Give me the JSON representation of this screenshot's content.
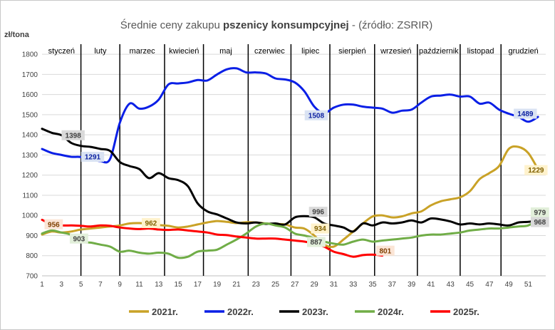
{
  "chart_data": {
    "type": "line",
    "title": {
      "prefix": "Średnie ceny zakupu ",
      "bold": "pszenicy konsumpcyjnej",
      "suffix": " - (źródło: ZSRIR)"
    },
    "ylabel": "zł/tona",
    "xlabel": "",
    "ylim": [
      700,
      1850
    ],
    "yticks": [
      700,
      800,
      900,
      1000,
      1100,
      1200,
      1300,
      1400,
      1500,
      1600,
      1700,
      1800
    ],
    "xlim": [
      1,
      52.8
    ],
    "xticks": [
      1,
      3,
      5,
      7,
      9,
      11,
      13,
      15,
      17,
      19,
      21,
      23,
      25,
      27,
      29,
      31,
      33,
      35,
      37,
      39,
      41,
      43,
      45,
      47,
      49,
      51
    ],
    "grid": "horizontal",
    "legend": "bottom",
    "months": [
      {
        "label": "styczeń",
        "start": 1,
        "end": 5
      },
      {
        "label": "luty",
        "start": 5,
        "end": 9
      },
      {
        "label": "marzec",
        "start": 9,
        "end": 13.6
      },
      {
        "label": "kwiecień",
        "start": 13.6,
        "end": 17.6
      },
      {
        "label": "maj",
        "start": 17.6,
        "end": 22.2
      },
      {
        "label": "czerwiec",
        "start": 22.2,
        "end": 26.6
      },
      {
        "label": "lipiec",
        "start": 26.6,
        "end": 30.6
      },
      {
        "label": "sierpień",
        "start": 30.6,
        "end": 35.2
      },
      {
        "label": "wrzesień",
        "start": 35.2,
        "end": 39.6
      },
      {
        "label": "październik",
        "start": 39.6,
        "end": 44
      },
      {
        "label": "listopad",
        "start": 44,
        "end": 48.2
      },
      {
        "label": "grudzień",
        "start": 48.2,
        "end": 52.8
      }
    ],
    "series": [
      {
        "name": "2021r.",
        "color": "#c9a227",
        "x": [
          1,
          2,
          3,
          4,
          5,
          6,
          7,
          8,
          9,
          10,
          11,
          12,
          13,
          14,
          15,
          16,
          17,
          18,
          19,
          20,
          21,
          22,
          23,
          24,
          25,
          26,
          27,
          28,
          29,
          30,
          31,
          32,
          33,
          34,
          35,
          36,
          37,
          38,
          39,
          40,
          41,
          42,
          43,
          44,
          45,
          46,
          47,
          48,
          49,
          50,
          51,
          52
        ],
        "values": [
          905,
          920,
          915,
          920,
          930,
          935,
          940,
          945,
          950,
          960,
          962,
          958,
          952,
          948,
          940,
          945,
          955,
          965,
          972,
          968,
          962,
          966,
          965,
          960,
          958,
          955,
          940,
          934,
          900,
          855,
          845,
          880,
          920,
          960,
          995,
          1000,
          990,
          995,
          1010,
          1020,
          1050,
          1070,
          1080,
          1090,
          1120,
          1180,
          1210,
          1245,
          1330,
          1340,
          1310,
          1229
        ]
      },
      {
        "name": "2022r.",
        "color": "#0a1fe6",
        "x": [
          1,
          2,
          3,
          4,
          5,
          6,
          7,
          8,
          9,
          10,
          11,
          12,
          13,
          14,
          15,
          16,
          17,
          18,
          19,
          20,
          21,
          22,
          23,
          24,
          25,
          26,
          27,
          28,
          29,
          30,
          31,
          32,
          33,
          34,
          35,
          36,
          37,
          38,
          39,
          40,
          41,
          42,
          43,
          44,
          45,
          46,
          47,
          48,
          49,
          50,
          51,
          52
        ],
        "values": [
          1330,
          1310,
          1300,
          1291,
          1290,
          1280,
          1270,
          1280,
          1460,
          1555,
          1530,
          1540,
          1575,
          1650,
          1655,
          1660,
          1672,
          1670,
          1700,
          1725,
          1730,
          1710,
          1710,
          1705,
          1680,
          1675,
          1660,
          1615,
          1540,
          1508,
          1535,
          1550,
          1550,
          1540,
          1535,
          1530,
          1510,
          1520,
          1525,
          1560,
          1590,
          1595,
          1600,
          1590,
          1590,
          1555,
          1560,
          1525,
          1505,
          1489,
          1465,
          1489
        ]
      },
      {
        "name": "2023r.",
        "color": "#000000",
        "x": [
          1,
          2,
          3,
          4,
          5,
          6,
          7,
          8,
          9,
          10,
          11,
          12,
          13,
          14,
          15,
          16,
          17,
          18,
          19,
          20,
          21,
          22,
          23,
          24,
          25,
          26,
          27,
          28,
          29,
          30,
          31,
          32,
          33,
          34,
          35,
          36,
          37,
          38,
          39,
          40,
          41,
          42,
          43,
          44,
          45,
          46,
          47,
          48,
          49,
          50,
          51,
          52
        ],
        "values": [
          1430,
          1410,
          1398,
          1360,
          1345,
          1340,
          1330,
          1320,
          1265,
          1245,
          1230,
          1185,
          1210,
          1185,
          1175,
          1145,
          1060,
          1020,
          1005,
          985,
          965,
          960,
          965,
          958,
          960,
          955,
          990,
          996,
          990,
          960,
          950,
          940,
          920,
          960,
          950,
          965,
          960,
          965,
          975,
          965,
          985,
          980,
          970,
          955,
          960,
          955,
          960,
          955,
          950,
          965,
          968,
          975
        ]
      },
      {
        "name": "2024r.",
        "color": "#70ad47",
        "x": [
          1,
          2,
          3,
          4,
          5,
          6,
          7,
          8,
          9,
          10,
          11,
          12,
          13,
          14,
          15,
          16,
          17,
          18,
          19,
          20,
          21,
          22,
          23,
          24,
          25,
          26,
          27,
          28,
          29,
          30,
          31,
          32,
          33,
          34,
          35,
          36,
          37,
          38,
          39,
          40,
          41,
          42,
          43,
          44,
          45,
          46,
          47,
          48,
          49,
          50,
          51,
          52
        ],
        "values": [
          910,
          925,
          915,
          903,
          870,
          865,
          855,
          845,
          820,
          825,
          815,
          810,
          815,
          810,
          790,
          795,
          820,
          825,
          830,
          855,
          880,
          910,
          945,
          960,
          950,
          940,
          910,
          900,
          887,
          870,
          860,
          855,
          870,
          880,
          870,
          875,
          880,
          885,
          890,
          900,
          905,
          905,
          910,
          915,
          925,
          930,
          935,
          935,
          940,
          945,
          950,
          979
        ]
      },
      {
        "name": "2025r.",
        "color": "#ff0000",
        "x": [
          1,
          2,
          3,
          4,
          5,
          6,
          7,
          8,
          9,
          10,
          11,
          12,
          13,
          14,
          15,
          16,
          17,
          18,
          19,
          20,
          21,
          22,
          23,
          24,
          25,
          26,
          27,
          28,
          29,
          30,
          31,
          32,
          33,
          34,
          35,
          36
        ],
        "values": [
          978,
          956,
          950,
          950,
          948,
          945,
          950,
          948,
          940,
          935,
          932,
          935,
          930,
          928,
          930,
          925,
          920,
          915,
          905,
          902,
          895,
          890,
          885,
          885,
          885,
          880,
          875,
          870,
          860,
          845,
          820,
          808,
          795,
          803,
          805,
          801
        ]
      }
    ],
    "data_labels": [
      {
        "text": "1398",
        "series": 2,
        "x": 4.2,
        "y": 1398,
        "bg": "#d9d9d9",
        "color": "#404040"
      },
      {
        "text": "1291",
        "series": 1,
        "x": 6.2,
        "y": 1291,
        "bg": "#dae3f3",
        "color": "#0a1fa0"
      },
      {
        "text": "956",
        "series": 4,
        "x": 2.2,
        "y": 956,
        "bg": "#fbe5d6",
        "color": "#7f3f00"
      },
      {
        "text": "903",
        "series": 3,
        "x": 4.8,
        "y": 885,
        "bg": "#e2efda",
        "color": "#404040"
      },
      {
        "text": "962",
        "series": 0,
        "x": 12.2,
        "y": 962,
        "bg": "#fff2cc",
        "color": "#7f6000"
      },
      {
        "text": "1508",
        "series": 1,
        "x": 29.2,
        "y": 1497,
        "bg": "#dae3f3",
        "color": "#0a1fa0"
      },
      {
        "text": "996",
        "series": 2,
        "x": 29.4,
        "y": 1018,
        "bg": "#d9d9d9",
        "color": "#404040"
      },
      {
        "text": "934",
        "series": 0,
        "x": 29.6,
        "y": 935,
        "bg": "#fff2cc",
        "color": "#7f6000"
      },
      {
        "text": "887",
        "series": 3,
        "x": 29.2,
        "y": 868,
        "bg": "#e2efda",
        "color": "#404040"
      },
      {
        "text": "801",
        "series": 4,
        "x": 36.3,
        "y": 825,
        "bg": "#fbe5d6",
        "color": "#7f3f00"
      },
      {
        "text": "1489",
        "series": 1,
        "x": 50.7,
        "y": 1505,
        "bg": "#dae3f3",
        "color": "#0a1fa0"
      },
      {
        "text": "1229",
        "series": 0,
        "x": 51.8,
        "y": 1225,
        "bg": "#fff2cc",
        "color": "#7f6000"
      },
      {
        "text": "979",
        "series": 3,
        "x": 52.2,
        "y": 1015,
        "bg": "#e2efda",
        "color": "#404040"
      },
      {
        "text": "968",
        "series": 2,
        "x": 52.2,
        "y": 967,
        "bg": "#d9d9d9",
        "color": "#404040"
      }
    ]
  }
}
